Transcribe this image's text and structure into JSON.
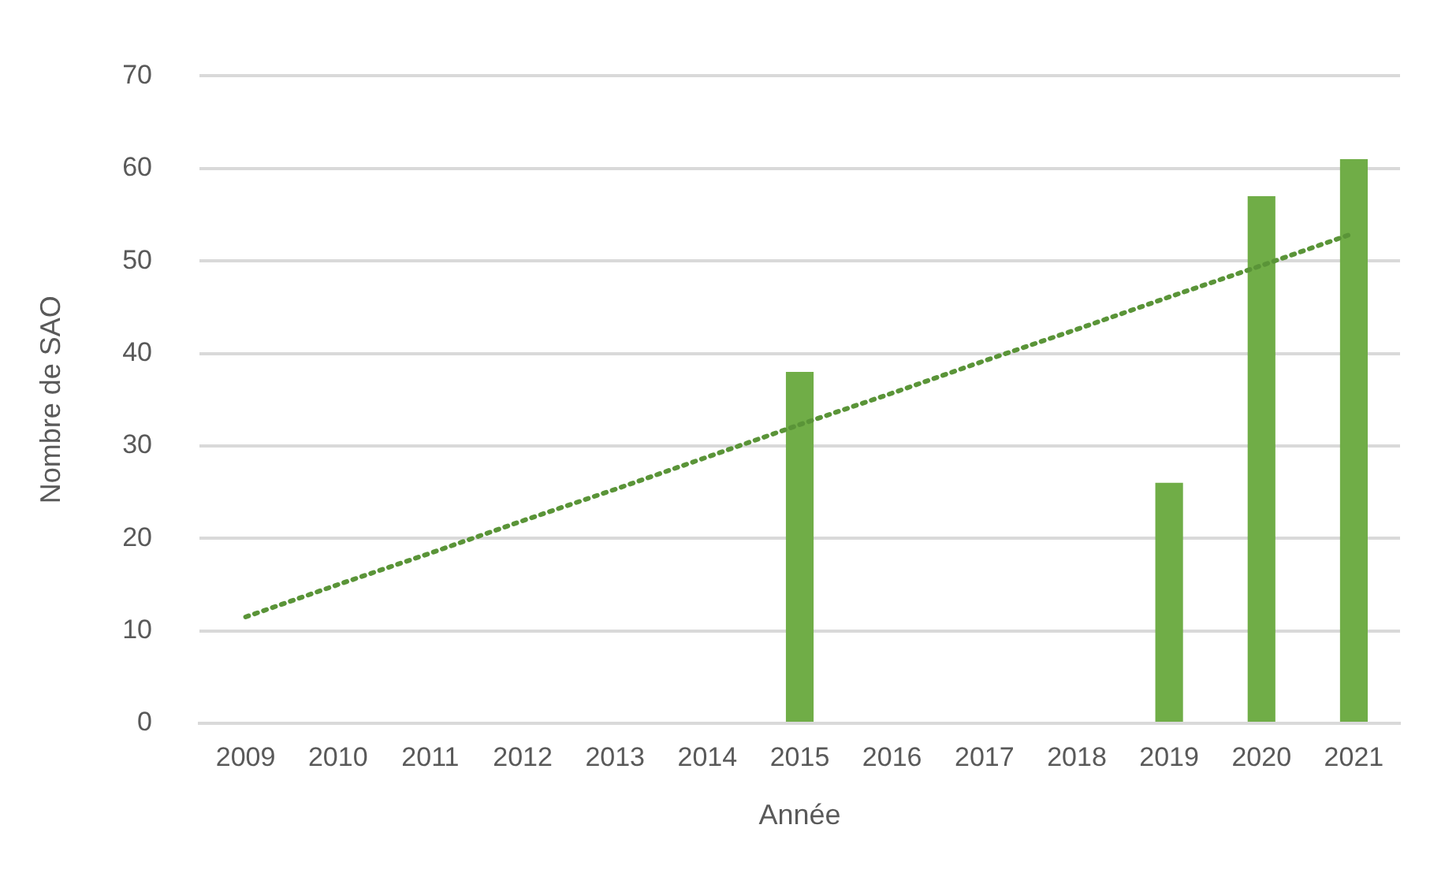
{
  "chart_data": {
    "type": "bar",
    "xlabel": "Année",
    "ylabel": "Nombre de SAO",
    "categories": [
      "2009",
      "2010",
      "2011",
      "2012",
      "2013",
      "2014",
      "2015",
      "2016",
      "2017",
      "2018",
      "2019",
      "2020",
      "2021"
    ],
    "series": [
      {
        "color": "#70ad47",
        "values": [
          0,
          0,
          0,
          0,
          0,
          0,
          38,
          0,
          0,
          0,
          26,
          57,
          61
        ]
      },
      {
        "type": "line",
        "color": "#5a9438",
        "line_style": "dotted",
        "marker": "none",
        "values": [
          11.5,
          15,
          18.4,
          21.9,
          25.3,
          28.8,
          32.3,
          35.7,
          39.2,
          42.6,
          46.1,
          49.5,
          53
        ]
      }
    ],
    "ylim": [
      0,
      70
    ],
    "yticks": [
      0,
      10,
      20,
      30,
      40,
      50,
      60,
      70
    ],
    "grid": "y",
    "legend": false
  }
}
